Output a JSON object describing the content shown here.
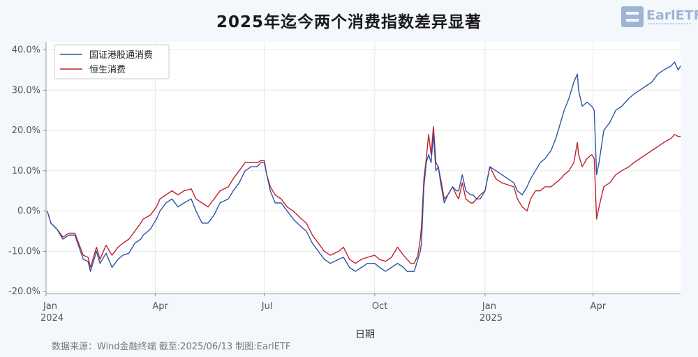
{
  "chart_data": {
    "type": "line",
    "title": "2025年迄今两个消费指数差异显著",
    "xlabel": "日期",
    "ylabel": "",
    "x_range": [
      "2024-01-01",
      "2025-06-13"
    ],
    "ylim": [
      -20.5,
      42
    ],
    "y_ticks": [
      -20,
      -10,
      0,
      10,
      20,
      30,
      40
    ],
    "y_tick_labels": [
      "-20.0%",
      "-10.0%",
      "0.0%",
      "10.0%",
      "20.0%",
      "30.0%",
      "40.0%"
    ],
    "x_ticks": [
      {
        "date": "2024-01-01",
        "label": "Jan",
        "sublabel": "2024"
      },
      {
        "date": "2024-04-01",
        "label": "Apr",
        "sublabel": ""
      },
      {
        "date": "2024-07-01",
        "label": "Jul",
        "sublabel": ""
      },
      {
        "date": "2024-10-01",
        "label": "Oct",
        "sublabel": ""
      },
      {
        "date": "2025-01-01",
        "label": "Jan",
        "sublabel": "2025"
      },
      {
        "date": "2025-04-01",
        "label": "Apr",
        "sublabel": ""
      }
    ],
    "grid": true,
    "legend_position": "top-left",
    "series": [
      {
        "name": "国证港股通消费",
        "color": "#2b56a3",
        "points": [
          [
            "2024-01-02",
            0
          ],
          [
            "2024-01-05",
            -3
          ],
          [
            "2024-01-10",
            -4.5
          ],
          [
            "2024-01-15",
            -7
          ],
          [
            "2024-01-20",
            -6
          ],
          [
            "2024-01-25",
            -6
          ],
          [
            "2024-02-01",
            -12
          ],
          [
            "2024-02-05",
            -12.5
          ],
          [
            "2024-02-07",
            -15
          ],
          [
            "2024-02-12",
            -10
          ],
          [
            "2024-02-15",
            -13
          ],
          [
            "2024-02-20",
            -10.5
          ],
          [
            "2024-02-25",
            -14
          ],
          [
            "2024-03-01",
            -12
          ],
          [
            "2024-03-05",
            -11
          ],
          [
            "2024-03-10",
            -10.5
          ],
          [
            "2024-03-15",
            -8
          ],
          [
            "2024-03-20",
            -7
          ],
          [
            "2024-03-22",
            -6
          ],
          [
            "2024-03-28",
            -4.5
          ],
          [
            "2024-04-02",
            -2
          ],
          [
            "2024-04-05",
            0
          ],
          [
            "2024-04-10",
            2
          ],
          [
            "2024-04-15",
            3
          ],
          [
            "2024-04-20",
            1
          ],
          [
            "2024-04-25",
            2
          ],
          [
            "2024-05-01",
            3
          ],
          [
            "2024-05-05",
            0
          ],
          [
            "2024-05-10",
            -3
          ],
          [
            "2024-05-15",
            -3
          ],
          [
            "2024-05-20",
            -1
          ],
          [
            "2024-05-25",
            2
          ],
          [
            "2024-06-01",
            3
          ],
          [
            "2024-06-05",
            5
          ],
          [
            "2024-06-10",
            7
          ],
          [
            "2024-06-15",
            10
          ],
          [
            "2024-06-20",
            11
          ],
          [
            "2024-06-25",
            11
          ],
          [
            "2024-06-28",
            12
          ],
          [
            "2024-07-01",
            12
          ],
          [
            "2024-07-03",
            9
          ],
          [
            "2024-07-06",
            5
          ],
          [
            "2024-07-10",
            2
          ],
          [
            "2024-07-15",
            2
          ],
          [
            "2024-07-20",
            0
          ],
          [
            "2024-07-25",
            -2
          ],
          [
            "2024-08-01",
            -4
          ],
          [
            "2024-08-05",
            -5
          ],
          [
            "2024-08-10",
            -8
          ],
          [
            "2024-08-15",
            -10
          ],
          [
            "2024-08-20",
            -12
          ],
          [
            "2024-08-25",
            -13
          ],
          [
            "2024-09-01",
            -12
          ],
          [
            "2024-09-05",
            -11.5
          ],
          [
            "2024-09-10",
            -14
          ],
          [
            "2024-09-15",
            -15
          ],
          [
            "2024-09-20",
            -14
          ],
          [
            "2024-09-25",
            -13
          ],
          [
            "2024-10-01",
            -13
          ],
          [
            "2024-10-05",
            -14
          ],
          [
            "2024-10-10",
            -15
          ],
          [
            "2024-10-15",
            -14
          ],
          [
            "2024-10-20",
            -13
          ],
          [
            "2024-10-25",
            -14
          ],
          [
            "2024-10-28",
            -15
          ],
          [
            "2024-10-31",
            -15
          ],
          [
            "2024-11-03",
            -15
          ],
          [
            "2024-11-06",
            -12
          ],
          [
            "2024-11-08",
            -10
          ],
          [
            "2024-11-09",
            -8
          ],
          [
            "2024-11-11",
            6
          ],
          [
            "2024-11-13",
            12
          ],
          [
            "2024-11-15",
            14
          ],
          [
            "2024-11-17",
            12
          ],
          [
            "2024-11-19",
            19
          ],
          [
            "2024-11-21",
            10
          ],
          [
            "2024-11-23",
            11
          ],
          [
            "2024-11-25",
            7
          ],
          [
            "2024-11-28",
            2
          ],
          [
            "2024-12-01",
            4
          ],
          [
            "2024-12-05",
            6
          ],
          [
            "2024-12-08",
            5
          ],
          [
            "2024-12-10",
            5
          ],
          [
            "2024-12-13",
            9
          ],
          [
            "2024-12-16",
            5
          ],
          [
            "2024-12-20",
            4
          ],
          [
            "2024-12-22",
            4
          ],
          [
            "2024-12-25",
            3
          ],
          [
            "2024-12-28",
            3
          ],
          [
            "2025-01-01",
            5
          ],
          [
            "2025-01-05",
            11
          ],
          [
            "2025-01-10",
            10
          ],
          [
            "2025-01-15",
            9
          ],
          [
            "2025-01-20",
            8
          ],
          [
            "2025-01-25",
            7
          ],
          [
            "2025-01-28",
            5
          ],
          [
            "2025-02-01",
            4
          ],
          [
            "2025-02-05",
            6
          ],
          [
            "2025-02-08",
            8
          ],
          [
            "2025-02-12",
            10
          ],
          [
            "2025-02-16",
            12
          ],
          [
            "2025-02-20",
            13
          ],
          [
            "2025-02-25",
            15
          ],
          [
            "2025-03-01",
            18
          ],
          [
            "2025-03-05",
            22
          ],
          [
            "2025-03-08",
            25
          ],
          [
            "2025-03-12",
            28
          ],
          [
            "2025-03-16",
            32
          ],
          [
            "2025-03-19",
            34
          ],
          [
            "2025-03-20",
            30
          ],
          [
            "2025-03-23",
            26
          ],
          [
            "2025-03-27",
            27
          ],
          [
            "2025-03-31",
            26
          ],
          [
            "2025-04-02",
            25
          ],
          [
            "2025-04-04",
            9
          ],
          [
            "2025-04-06",
            12
          ],
          [
            "2025-04-10",
            20
          ],
          [
            "2025-04-15",
            22
          ],
          [
            "2025-04-20",
            25
          ],
          [
            "2025-04-25",
            26
          ],
          [
            "2025-05-01",
            28
          ],
          [
            "2025-05-05",
            29
          ],
          [
            "2025-05-10",
            30
          ],
          [
            "2025-05-15",
            31
          ],
          [
            "2025-05-20",
            32
          ],
          [
            "2025-05-25",
            34
          ],
          [
            "2025-05-30",
            35
          ],
          [
            "2025-06-05",
            36
          ],
          [
            "2025-06-08",
            37
          ],
          [
            "2025-06-11",
            35
          ],
          [
            "2025-06-13",
            36
          ]
        ]
      },
      {
        "name": "恒生消费",
        "color": "#c0202f",
        "points": [
          [
            "2024-01-02",
            0
          ],
          [
            "2024-01-05",
            -3
          ],
          [
            "2024-01-10",
            -4.5
          ],
          [
            "2024-01-15",
            -6.5
          ],
          [
            "2024-01-20",
            -5.5
          ],
          [
            "2024-01-25",
            -5.5
          ],
          [
            "2024-02-01",
            -11
          ],
          [
            "2024-02-05",
            -11.5
          ],
          [
            "2024-02-07",
            -14
          ],
          [
            "2024-02-12",
            -9
          ],
          [
            "2024-02-15",
            -12
          ],
          [
            "2024-02-20",
            -8.5
          ],
          [
            "2024-02-25",
            -11
          ],
          [
            "2024-03-01",
            -9
          ],
          [
            "2024-03-05",
            -8
          ],
          [
            "2024-03-10",
            -7
          ],
          [
            "2024-03-15",
            -5
          ],
          [
            "2024-03-20",
            -3
          ],
          [
            "2024-03-22",
            -2
          ],
          [
            "2024-03-28",
            -1
          ],
          [
            "2024-04-02",
            1
          ],
          [
            "2024-04-05",
            3
          ],
          [
            "2024-04-10",
            4
          ],
          [
            "2024-04-15",
            5
          ],
          [
            "2024-04-20",
            4
          ],
          [
            "2024-04-25",
            5
          ],
          [
            "2024-05-01",
            5.5
          ],
          [
            "2024-05-05",
            3
          ],
          [
            "2024-05-10",
            2
          ],
          [
            "2024-05-15",
            1
          ],
          [
            "2024-05-20",
            3
          ],
          [
            "2024-05-25",
            5
          ],
          [
            "2024-06-01",
            6
          ],
          [
            "2024-06-05",
            8
          ],
          [
            "2024-06-10",
            10
          ],
          [
            "2024-06-15",
            12
          ],
          [
            "2024-06-20",
            12
          ],
          [
            "2024-06-25",
            12
          ],
          [
            "2024-06-28",
            12.5
          ],
          [
            "2024-07-01",
            12.5
          ],
          [
            "2024-07-03",
            9
          ],
          [
            "2024-07-06",
            6
          ],
          [
            "2024-07-10",
            4
          ],
          [
            "2024-07-15",
            3
          ],
          [
            "2024-07-20",
            1
          ],
          [
            "2024-07-25",
            0
          ],
          [
            "2024-08-01",
            -2
          ],
          [
            "2024-08-05",
            -3
          ],
          [
            "2024-08-10",
            -6
          ],
          [
            "2024-08-15",
            -8
          ],
          [
            "2024-08-20",
            -10
          ],
          [
            "2024-08-25",
            -11
          ],
          [
            "2024-09-01",
            -10
          ],
          [
            "2024-09-05",
            -9
          ],
          [
            "2024-09-10",
            -12
          ],
          [
            "2024-09-15",
            -13
          ],
          [
            "2024-09-20",
            -12
          ],
          [
            "2024-09-25",
            -11.5
          ],
          [
            "2024-10-01",
            -11
          ],
          [
            "2024-10-05",
            -12
          ],
          [
            "2024-10-10",
            -12.5
          ],
          [
            "2024-10-15",
            -11.5
          ],
          [
            "2024-10-20",
            -9
          ],
          [
            "2024-10-25",
            -11
          ],
          [
            "2024-10-28",
            -12
          ],
          [
            "2024-10-31",
            -13
          ],
          [
            "2024-11-03",
            -13
          ],
          [
            "2024-11-06",
            -11
          ],
          [
            "2024-11-08",
            -7
          ],
          [
            "2024-11-09",
            -4
          ],
          [
            "2024-11-11",
            8
          ],
          [
            "2024-11-13",
            13
          ],
          [
            "2024-11-15",
            19
          ],
          [
            "2024-11-17",
            14
          ],
          [
            "2024-11-19",
            21
          ],
          [
            "2024-11-21",
            12
          ],
          [
            "2024-11-23",
            11
          ],
          [
            "2024-11-25",
            8
          ],
          [
            "2024-11-28",
            3
          ],
          [
            "2024-12-01",
            4
          ],
          [
            "2024-12-05",
            6
          ],
          [
            "2024-12-08",
            4
          ],
          [
            "2024-12-10",
            3
          ],
          [
            "2024-12-13",
            7
          ],
          [
            "2024-12-16",
            3
          ],
          [
            "2024-12-20",
            2
          ],
          [
            "2024-12-22",
            2
          ],
          [
            "2024-12-25",
            3
          ],
          [
            "2024-12-28",
            4
          ],
          [
            "2025-01-01",
            5
          ],
          [
            "2025-01-05",
            11
          ],
          [
            "2025-01-10",
            8
          ],
          [
            "2025-01-15",
            7
          ],
          [
            "2025-01-20",
            6.5
          ],
          [
            "2025-01-25",
            6
          ],
          [
            "2025-01-28",
            3
          ],
          [
            "2025-02-01",
            1
          ],
          [
            "2025-02-05",
            0
          ],
          [
            "2025-02-08",
            3
          ],
          [
            "2025-02-12",
            5
          ],
          [
            "2025-02-16",
            5
          ],
          [
            "2025-02-20",
            6
          ],
          [
            "2025-02-25",
            6
          ],
          [
            "2025-03-01",
            7
          ],
          [
            "2025-03-05",
            8
          ],
          [
            "2025-03-08",
            9
          ],
          [
            "2025-03-12",
            10
          ],
          [
            "2025-03-16",
            12
          ],
          [
            "2025-03-19",
            17
          ],
          [
            "2025-03-20",
            14
          ],
          [
            "2025-03-23",
            11
          ],
          [
            "2025-03-27",
            13
          ],
          [
            "2025-03-31",
            14
          ],
          [
            "2025-04-02",
            13
          ],
          [
            "2025-04-04",
            -2
          ],
          [
            "2025-04-06",
            1
          ],
          [
            "2025-04-10",
            6
          ],
          [
            "2025-04-15",
            7
          ],
          [
            "2025-04-20",
            9
          ],
          [
            "2025-04-25",
            10
          ],
          [
            "2025-05-01",
            11
          ],
          [
            "2025-05-05",
            12
          ],
          [
            "2025-05-10",
            13
          ],
          [
            "2025-05-15",
            14
          ],
          [
            "2025-05-20",
            15
          ],
          [
            "2025-05-25",
            16
          ],
          [
            "2025-05-30",
            17
          ],
          [
            "2025-06-05",
            18
          ],
          [
            "2025-06-08",
            19
          ],
          [
            "2025-06-11",
            18.5
          ],
          [
            "2025-06-13",
            18.5
          ]
        ]
      }
    ]
  },
  "logo": {
    "text": "EarlETF"
  },
  "source_note": "数据来源：Wind金融终端 截至:2025/06/13 制图:EarlETF"
}
